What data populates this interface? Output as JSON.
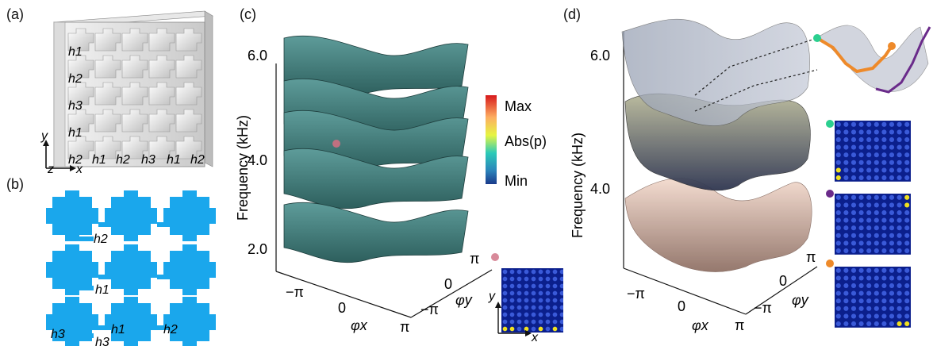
{
  "panels": {
    "a": {
      "label": "(a)",
      "axes": {
        "y": "y",
        "z": "z",
        "x": "x"
      },
      "h_vertical": [
        "h1",
        "h2",
        "h3",
        "h1",
        "h2"
      ],
      "h_horizontal": [
        "h1",
        "h2",
        "h3",
        "h1",
        "h2"
      ]
    },
    "b": {
      "label": "(b)",
      "dims": {
        "h2_top": "h2",
        "h1_mid": "h1",
        "h1_right": "h1",
        "h3": "h3",
        "h3b": "h3",
        "h2_right": "h2"
      },
      "fill_color": "#1aa7ec"
    },
    "c": {
      "label": "(c)",
      "ylabel": "Frequency (kHz)",
      "yticks": [
        "2.0",
        "4.0",
        "6.0"
      ],
      "xaxis_label": "φx",
      "yaxis_label": "φy",
      "xticks": [
        "−π",
        "0",
        "π"
      ],
      "ytick3d": [
        "−π",
        "0",
        "π"
      ],
      "surface_color": "#4a8a8a",
      "marker_color": "#c07080",
      "colorbar": {
        "max": "Max",
        "mid": "Abs(p)",
        "min": "Min"
      },
      "inset_axes": {
        "y": "y",
        "x": "x"
      }
    },
    "d": {
      "label": "(d)",
      "ylabel": "Frequency (kHz)",
      "yticks": [
        "4.0",
        "6.0"
      ],
      "xaxis_label": "φx",
      "yaxis_label": "φy",
      "xticks": [
        "−π",
        "0",
        "π"
      ],
      "ytick3d": [
        "−π",
        "0",
        "π"
      ],
      "marker_colors": [
        "#2bcf8f",
        "#6a2b8a",
        "#ee8a2a"
      ]
    }
  }
}
